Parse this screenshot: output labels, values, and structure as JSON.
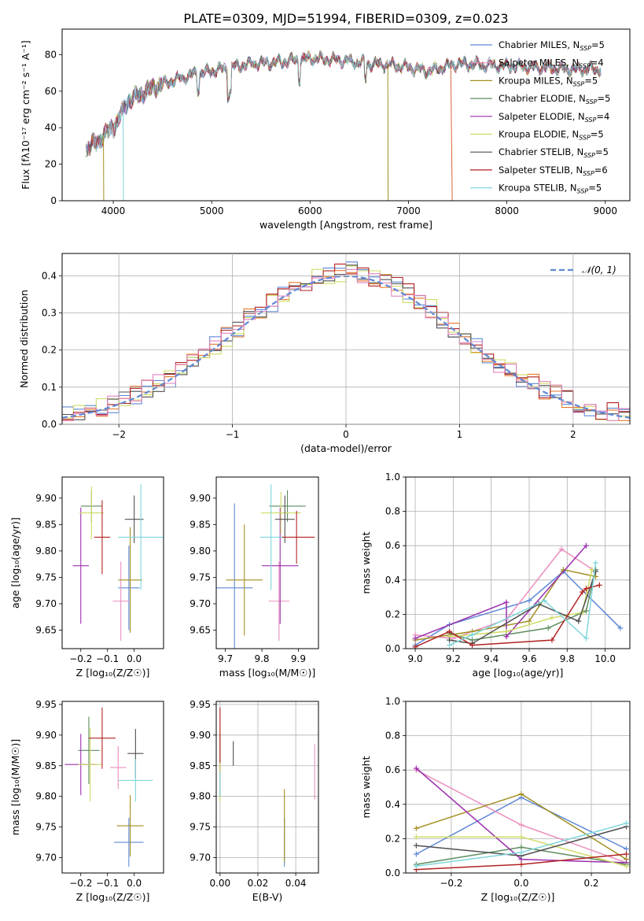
{
  "colors": [
    "#5f88d6",
    "#ea8fbf",
    "#a28f22",
    "#5e8c5f",
    "#9b2fae",
    "#cedb63",
    "#505050",
    "#b22222",
    "#7fd6db"
  ],
  "hist_colors": [
    "#5f88d6",
    "#e67a2e",
    "#cedb63",
    "#505050",
    "#b22222",
    "#e084c0"
  ],
  "chart_data": [
    {
      "id": "spectrum",
      "type": "line",
      "title": "PLATE=0309, MJD=51994, FIBERID=0309, z=0.023",
      "xlabel": "wavelength [Angstrom, rest frame]",
      "ylabel": "Flux [fλ10⁻¹⁷ erg cm⁻² s⁻¹ A⁻¹]",
      "xlim": [
        3480,
        9250
      ],
      "ylim": [
        0,
        94
      ],
      "xticks": [
        "4000",
        "5000",
        "6000",
        "7000",
        "8000",
        "9000"
      ],
      "yticks": [
        "0",
        "20",
        "40",
        "60",
        "80"
      ],
      "legend": "upper right",
      "series": [
        {
          "name": "Chabrier MILES, N",
          "sub": "SSP",
          "n": "=5"
        },
        {
          "name": "Salpeter MILES, N",
          "sub": "SSP",
          "n": "=4"
        },
        {
          "name": "Kroupa MILES, N",
          "sub": "SSP",
          "n": "=5"
        },
        {
          "name": "Chabrier ELODIE, N",
          "sub": "SSP",
          "n": "=5"
        },
        {
          "name": "Salpeter ELODIE, N",
          "sub": "SSP",
          "n": "=4"
        },
        {
          "name": "Kroupa ELODIE, N",
          "sub": "SSP",
          "n": "=5"
        },
        {
          "name": "Chabrier STELIB, N",
          "sub": "SSP",
          "n": "=5"
        },
        {
          "name": "Salpeter STELIB, N",
          "sub": "SSP",
          "n": "=6"
        },
        {
          "name": "Kroupa STELIB, N",
          "sub": "SSP",
          "n": "=5"
        }
      ],
      "continuum": [
        [
          3720,
          28
        ],
        [
          3850,
          33
        ],
        [
          3950,
          38
        ],
        [
          4050,
          44
        ],
        [
          4150,
          55
        ],
        [
          4300,
          59
        ],
        [
          4500,
          64
        ],
        [
          4800,
          69
        ],
        [
          5100,
          72
        ],
        [
          5400,
          75
        ],
        [
          5700,
          76
        ],
        [
          6000,
          78
        ],
        [
          6300,
          77
        ],
        [
          6600,
          75
        ],
        [
          6900,
          74
        ],
        [
          7200,
          71
        ],
        [
          7500,
          75
        ],
        [
          7900,
          74
        ],
        [
          8300,
          73
        ],
        [
          8700,
          72
        ],
        [
          8950,
          72
        ]
      ],
      "dropouts": [
        {
          "x": 3900,
          "floor": 0
        },
        {
          "x": 4100,
          "floor": 0
        },
        {
          "x": 6790,
          "floor": 0
        },
        {
          "x": 7430,
          "floor": 0
        }
      ]
    },
    {
      "id": "residuals",
      "type": "bar",
      "xlabel": "(data-model)/error",
      "ylabel": "Normed distribution",
      "xlim": [
        -2.5,
        2.5
      ],
      "ylim": [
        0,
        0.46
      ],
      "xticks": [
        "−2",
        "−1",
        "0",
        "1",
        "2"
      ],
      "yticks": [
        "0.0",
        "0.1",
        "0.2",
        "0.3",
        "0.4"
      ],
      "grid": true,
      "legend": "upper right",
      "model_label": "𝒩(0, 1)",
      "bin_width": 0.1
    },
    {
      "id": "age-vs-z",
      "type": "scatter",
      "xlabel": "Z [log₁₀(Z/Z☉)]",
      "ylabel": "age  [log₁₀(age/yr)]",
      "xlim": [
        -0.27,
        0.11
      ],
      "ylim": [
        9.615,
        9.94
      ],
      "xticks": [
        {
          "v": -0.2,
          "t": "−0.2"
        },
        {
          "v": -0.1,
          "t": "−0.1"
        },
        {
          "v": 0.0,
          "t": "0.0"
        }
      ],
      "yticks": [
        {
          "v": 9.65,
          "t": "9.65"
        },
        {
          "v": 9.7,
          "t": "9.70"
        },
        {
          "v": 9.75,
          "t": "9.75"
        },
        {
          "v": 9.8,
          "t": "9.80"
        },
        {
          "v": 9.85,
          "t": "9.85"
        },
        {
          "v": 9.9,
          "t": "9.90"
        }
      ],
      "points": [
        {
          "c": 0,
          "x": -0.02,
          "xe": 0.04,
          "y": 9.73,
          "ye": 0.08
        },
        {
          "c": 1,
          "x": -0.05,
          "xe": 0.03,
          "y": 9.705,
          "ye": 0.075
        },
        {
          "c": 2,
          "x": -0.015,
          "xe": 0.045,
          "y": 9.745,
          "ye": 0.1
        },
        {
          "c": 3,
          "x": -0.16,
          "xe": 0.04,
          "y": 9.885,
          "ye": 0.03
        },
        {
          "c": 4,
          "x": -0.2,
          "xe": 0.03,
          "y": 9.772,
          "ye": 0.11
        },
        {
          "c": 5,
          "x": -0.16,
          "xe": 0.045,
          "y": 9.872,
          "ye": 0.05
        },
        {
          "c": 6,
          "x": 0.0,
          "xe": 0.035,
          "y": 9.86,
          "ye": 0.045
        },
        {
          "c": 7,
          "x": -0.12,
          "xe": 0.03,
          "y": 9.826,
          "ye": 0.07
        },
        {
          "c": 8,
          "x": 0.025,
          "xe": 0.085,
          "y": 9.826,
          "ye": 0.1
        }
      ]
    },
    {
      "id": "age-vs-mass",
      "type": "scatter",
      "xlabel": "mass [log₁₀(M/M☉)]",
      "ylabel": "",
      "xlim": [
        9.675,
        9.955
      ],
      "ylim": [
        9.615,
        9.94
      ],
      "xticks": [
        {
          "v": 9.7,
          "t": "9.7"
        },
        {
          "v": 9.8,
          "t": "9.8"
        },
        {
          "v": 9.9,
          "t": "9.9"
        }
      ],
      "yticks": [
        {
          "v": 9.65,
          "t": "9.65"
        },
        {
          "v": 9.7,
          "t": "9.70"
        },
        {
          "v": 9.75,
          "t": "9.75"
        },
        {
          "v": 9.8,
          "t": "9.80"
        },
        {
          "v": 9.85,
          "t": "9.85"
        },
        {
          "v": 9.9,
          "t": "9.90"
        }
      ],
      "points": [
        {
          "c": 0,
          "x": 9.725,
          "xe": 0.05,
          "y": 9.73,
          "ye": 0.16
        },
        {
          "c": 1,
          "x": 9.847,
          "xe": 0.028,
          "y": 9.705,
          "ye": 0.075
        },
        {
          "c": 2,
          "x": 9.752,
          "xe": 0.05,
          "y": 9.745,
          "ye": 0.105
        },
        {
          "c": 3,
          "x": 9.87,
          "xe": 0.05,
          "y": 9.885,
          "ye": 0.03
        },
        {
          "c": 4,
          "x": 9.85,
          "xe": 0.05,
          "y": 9.772,
          "ye": 0.11
        },
        {
          "c": 5,
          "x": 9.852,
          "xe": 0.055,
          "y": 9.872,
          "ye": 0.04
        },
        {
          "c": 6,
          "x": 9.863,
          "xe": 0.027,
          "y": 9.86,
          "ye": 0.045
        },
        {
          "c": 7,
          "x": 9.895,
          "xe": 0.05,
          "y": 9.826,
          "ye": 0.05
        },
        {
          "c": 8,
          "x": 9.825,
          "xe": 0.03,
          "y": 9.826,
          "ye": 0.1
        }
      ]
    },
    {
      "id": "mass-weight-vs-age",
      "type": "line",
      "xlabel": "age  [log₁₀(age/yr)]",
      "ylabel": "mass weight",
      "xlim": [
        8.95,
        10.13
      ],
      "ylim": [
        0,
        1.0
      ],
      "xticks": [
        {
          "v": 9.0,
          "t": "9.0"
        },
        {
          "v": 9.2,
          "t": "9.2"
        },
        {
          "v": 9.4,
          "t": "9.4"
        },
        {
          "v": 9.6,
          "t": "9.6"
        },
        {
          "v": 9.8,
          "t": "9.8"
        },
        {
          "v": 10.0,
          "t": "10.0"
        }
      ],
      "yticks": [
        {
          "v": 0,
          "t": "0.0"
        },
        {
          "v": 0.2,
          "t": "0.2"
        },
        {
          "v": 0.4,
          "t": "0.4"
        },
        {
          "v": 0.6,
          "t": "0.6"
        },
        {
          "v": 0.8,
          "t": "0.8"
        },
        {
          "v": 1.0,
          "t": "1.0"
        }
      ],
      "grid": true,
      "series": [
        {
          "c": 0,
          "x": [
            9.0,
            9.18,
            9.6,
            9.78,
            10.08
          ],
          "y": [
            0.02,
            0.14,
            0.28,
            0.45,
            0.12
          ]
        },
        {
          "c": 1,
          "x": [
            9.0,
            9.2,
            9.48,
            9.77,
            9.95
          ],
          "y": [
            0.08,
            0.06,
            0.17,
            0.58,
            0.45
          ]
        },
        {
          "c": 2,
          "x": [
            9.0,
            9.3,
            9.6,
            9.78,
            9.95
          ],
          "y": [
            0.05,
            0.1,
            0.16,
            0.46,
            0.42
          ]
        },
        {
          "c": 3,
          "x": [
            9.18,
            9.3,
            9.7,
            9.9,
            9.95
          ],
          "y": [
            0.09,
            0.05,
            0.12,
            0.22,
            0.46
          ]
        },
        {
          "c": 4,
          "x": [
            9.0,
            9.48,
            9.48,
            9.9
          ],
          "y": [
            0.06,
            0.27,
            0.07,
            0.6
          ]
        },
        {
          "c": 5,
          "x": [
            9.18,
            9.48,
            9.72,
            9.88,
            9.93
          ],
          "y": [
            0.07,
            0.1,
            0.18,
            0.21,
            0.46
          ]
        },
        {
          "c": 6,
          "x": [
            9.18,
            9.3,
            9.65,
            9.86,
            9.95
          ],
          "y": [
            0.05,
            0.03,
            0.26,
            0.16,
            0.45
          ]
        },
        {
          "c": 7,
          "x": [
            9.0,
            9.18,
            9.3,
            9.72,
            9.88,
            9.9,
            9.97
          ],
          "y": [
            0.01,
            0.1,
            0.02,
            0.05,
            0.33,
            0.35,
            0.37
          ]
        },
        {
          "c": 8,
          "x": [
            9.18,
            9.3,
            9.68,
            9.9,
            9.95
          ],
          "y": [
            0.02,
            0.08,
            0.28,
            0.06,
            0.5
          ]
        }
      ]
    },
    {
      "id": "mass-vs-z",
      "type": "scatter",
      "xlabel": "Z [log₁₀(Z/Z☉)]",
      "ylabel": "mass [log₁₀(M/M☉)]",
      "xlim": [
        -0.27,
        0.11
      ],
      "ylim": [
        9.675,
        9.955
      ],
      "xticks": [
        {
          "v": -0.2,
          "t": "−0.2"
        },
        {
          "v": -0.1,
          "t": "−0.1"
        },
        {
          "v": 0.0,
          "t": "0.0"
        }
      ],
      "yticks": [
        {
          "v": 9.7,
          "t": "9.70"
        },
        {
          "v": 9.75,
          "t": "9.75"
        },
        {
          "v": 9.8,
          "t": "9.80"
        },
        {
          "v": 9.85,
          "t": "9.85"
        },
        {
          "v": 9.9,
          "t": "9.90"
        },
        {
          "v": 9.95,
          "t": "9.95"
        }
      ],
      "points": [
        {
          "c": 0,
          "x": -0.02,
          "xe": 0.055,
          "y": 9.725,
          "ye": 0.04
        },
        {
          "c": 1,
          "x": -0.06,
          "xe": 0.03,
          "y": 9.847,
          "ye": 0.035
        },
        {
          "c": 2,
          "x": -0.015,
          "xe": 0.05,
          "y": 9.752,
          "ye": 0.05
        },
        {
          "c": 3,
          "x": -0.17,
          "xe": 0.04,
          "y": 9.875,
          "ye": 0.055
        },
        {
          "c": 4,
          "x": -0.2,
          "xe": 0.06,
          "y": 9.852,
          "ye": 0.05
        },
        {
          "c": 5,
          "x": -0.165,
          "xe": 0.045,
          "y": 9.852,
          "ye": 0.06
        },
        {
          "c": 6,
          "x": 0.005,
          "xe": 0.03,
          "y": 9.87,
          "ye": 0.04
        },
        {
          "c": 7,
          "x": -0.12,
          "xe": 0.05,
          "y": 9.895,
          "ye": 0.05
        },
        {
          "c": 8,
          "x": 0.005,
          "xe": 0.065,
          "y": 9.826,
          "ye": 0.035
        }
      ]
    },
    {
      "id": "mass-vs-ebv",
      "type": "scatter",
      "xlabel": "E(B-V)",
      "ylabel": "",
      "xlim": [
        -0.002,
        0.052
      ],
      "ylim": [
        9.675,
        9.955
      ],
      "xticks": [
        {
          "v": 0.0,
          "t": "0.00"
        },
        {
          "v": 0.02,
          "t": "0.02"
        },
        {
          "v": 0.04,
          "t": "0.04"
        }
      ],
      "yticks": [
        {
          "v": 9.7,
          "t": "9.70"
        },
        {
          "v": 9.75,
          "t": "9.75"
        },
        {
          "v": 9.8,
          "t": "9.80"
        },
        {
          "v": 9.85,
          "t": "9.85"
        },
        {
          "v": 9.9,
          "t": "9.90"
        },
        {
          "v": 9.95,
          "t": "9.95"
        }
      ],
      "grid": true,
      "points": [
        {
          "c": 0,
          "x": 0.034,
          "xe": 0,
          "y": 9.725,
          "ye": 0.04
        },
        {
          "c": 1,
          "x": 0.05,
          "xe": 0,
          "y": 9.84,
          "ye": 0.045
        },
        {
          "c": 2,
          "x": 0.034,
          "xe": 0,
          "y": 9.752,
          "ye": 0.06
        },
        {
          "c": 3,
          "x": 0.0,
          "xe": 0,
          "y": 9.85,
          "ye": 0.05
        },
        {
          "c": 4,
          "x": 0.0,
          "xe": 0,
          "y": 9.852,
          "ye": 0.05
        },
        {
          "c": 5,
          "x": 0.0,
          "xe": 0,
          "y": 9.852,
          "ye": 0.06
        },
        {
          "c": 6,
          "x": 0.007,
          "xe": 0,
          "y": 9.87,
          "ye": 0.02
        },
        {
          "c": 7,
          "x": 0.0,
          "xe": 0,
          "y": 9.9,
          "ye": 0.045
        },
        {
          "c": 8,
          "x": 0.0,
          "xe": 0,
          "y": 9.82,
          "ye": 0.02
        }
      ]
    },
    {
      "id": "mass-weight-vs-z",
      "type": "line",
      "xlabel": "Z [log₁₀(Z/Z☉)]",
      "ylabel": "mass weight",
      "xlim": [
        -0.33,
        0.31
      ],
      "ylim": [
        0,
        1.0
      ],
      "xticks": [
        {
          "v": -0.2,
          "t": "−0.2"
        },
        {
          "v": 0.0,
          "t": "0.0"
        },
        {
          "v": 0.2,
          "t": "0.2"
        }
      ],
      "yticks": [
        {
          "v": 0,
          "t": "0.0"
        },
        {
          "v": 0.2,
          "t": "0.2"
        },
        {
          "v": 0.4,
          "t": "0.4"
        },
        {
          "v": 0.6,
          "t": "0.6"
        },
        {
          "v": 0.8,
          "t": "0.8"
        },
        {
          "v": 1.0,
          "t": "1.0"
        }
      ],
      "grid": true,
      "series": [
        {
          "c": 0,
          "x": [
            -0.3,
            0.0,
            0.3
          ],
          "y": [
            0.11,
            0.44,
            0.14
          ]
        },
        {
          "c": 1,
          "x": [
            -0.3,
            0.0,
            0.3
          ],
          "y": [
            0.6,
            0.28,
            0.06
          ]
        },
        {
          "c": 2,
          "x": [
            -0.3,
            0.0,
            0.3
          ],
          "y": [
            0.26,
            0.46,
            0.08
          ]
        },
        {
          "c": 3,
          "x": [
            -0.3,
            0.0,
            0.3
          ],
          "y": [
            0.05,
            0.15,
            0.05
          ]
        },
        {
          "c": 4,
          "x": [
            -0.3,
            0.0,
            0.3
          ],
          "y": [
            0.61,
            0.08,
            0.06
          ]
        },
        {
          "c": 5,
          "x": [
            -0.3,
            0.0,
            0.3
          ],
          "y": [
            0.21,
            0.21,
            0.04
          ]
        },
        {
          "c": 6,
          "x": [
            -0.3,
            0.0,
            0.3
          ],
          "y": [
            0.16,
            0.1,
            0.27
          ]
        },
        {
          "c": 7,
          "x": [
            -0.3,
            0.0,
            0.3
          ],
          "y": [
            0.02,
            0.05,
            0.11
          ]
        },
        {
          "c": 8,
          "x": [
            -0.3,
            0.0,
            0.3
          ],
          "y": [
            0.04,
            0.12,
            0.29
          ]
        }
      ]
    }
  ]
}
